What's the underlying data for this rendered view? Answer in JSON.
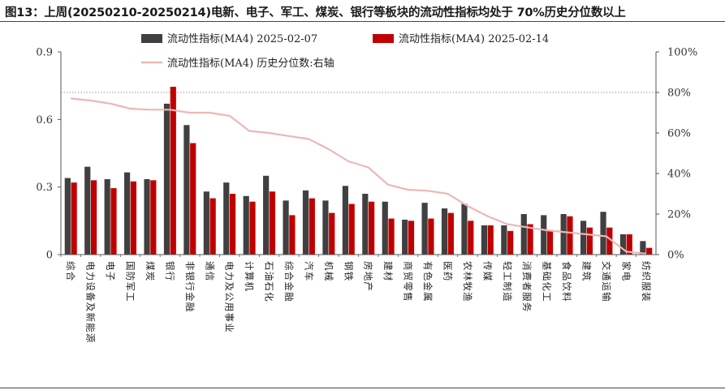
{
  "figure": {
    "title": "图13：上周(20250210-20250214)电新、电子、军工、煤炭、银行等板块的流动性指标均处于 70%历史分位数以上"
  },
  "chart_data": {
    "type": "bar",
    "categories": [
      "综合",
      "电力设备及新能源",
      "电子",
      "国防军工",
      "煤炭",
      "银行",
      "非银行金融",
      "通信",
      "电力及公用事业",
      "计算机",
      "石油石化",
      "综合金融",
      "汽车",
      "机械",
      "钢铁",
      "房地产",
      "建材",
      "商贸零售",
      "有色金属",
      "医药",
      "农林牧渔",
      "传媒",
      "轻工制造",
      "消费者服务",
      "基础化工",
      "食品饮料",
      "建筑",
      "交通运输",
      "家电",
      "纺织服装"
    ],
    "series": [
      {
        "name": "流动性指标(MA4) 2025-02-07",
        "type": "bar",
        "axis": "left",
        "color": "#404040",
        "values": [
          0.34,
          0.39,
          0.335,
          0.365,
          0.335,
          0.67,
          0.575,
          0.28,
          0.32,
          0.26,
          0.35,
          0.24,
          0.285,
          0.24,
          0.305,
          0.27,
          0.235,
          0.155,
          0.23,
          0.205,
          0.225,
          0.13,
          0.13,
          0.18,
          0.175,
          0.18,
          0.15,
          0.19,
          0.09,
          0.06
        ]
      },
      {
        "name": "流动性指标(MA4) 2025-02-14",
        "type": "bar",
        "axis": "left",
        "color": "#c00000",
        "values": [
          0.32,
          0.33,
          0.295,
          0.325,
          0.33,
          0.745,
          0.495,
          0.25,
          0.27,
          0.235,
          0.28,
          0.175,
          0.25,
          0.185,
          0.225,
          0.235,
          0.16,
          0.15,
          0.16,
          0.185,
          0.15,
          0.13,
          0.105,
          0.135,
          0.105,
          0.17,
          0.12,
          0.12,
          0.09,
          0.03
        ]
      },
      {
        "name": "流动性指标(MA4) 历史分位数:右轴",
        "type": "line",
        "axis": "right",
        "color": "#ecb7b7",
        "values": [
          77,
          76,
          74.5,
          72,
          71.5,
          71.5,
          70,
          70,
          68.5,
          61,
          60,
          58.5,
          57,
          52,
          46,
          43,
          34.5,
          32,
          31.5,
          30,
          24,
          19,
          15,
          13.5,
          12,
          11,
          10,
          9,
          1.5,
          0.5
        ]
      }
    ],
    "left_axis": {
      "ylim": [
        0,
        0.9
      ],
      "ticks": [
        "0",
        "0.3",
        "0.6",
        "0.9"
      ],
      "tick_values": [
        0,
        0.3,
        0.6,
        0.9
      ]
    },
    "right_axis": {
      "ylim": [
        0,
        100
      ],
      "ticks": [
        "0%",
        "20%",
        "40%",
        "60%",
        "80%",
        "100%"
      ],
      "tick_values": [
        0,
        20,
        40,
        60,
        80,
        100
      ]
    },
    "reference_line": {
      "value": 80,
      "axis": "right",
      "style": "dotted"
    },
    "legend": {
      "position": "top-center"
    }
  }
}
